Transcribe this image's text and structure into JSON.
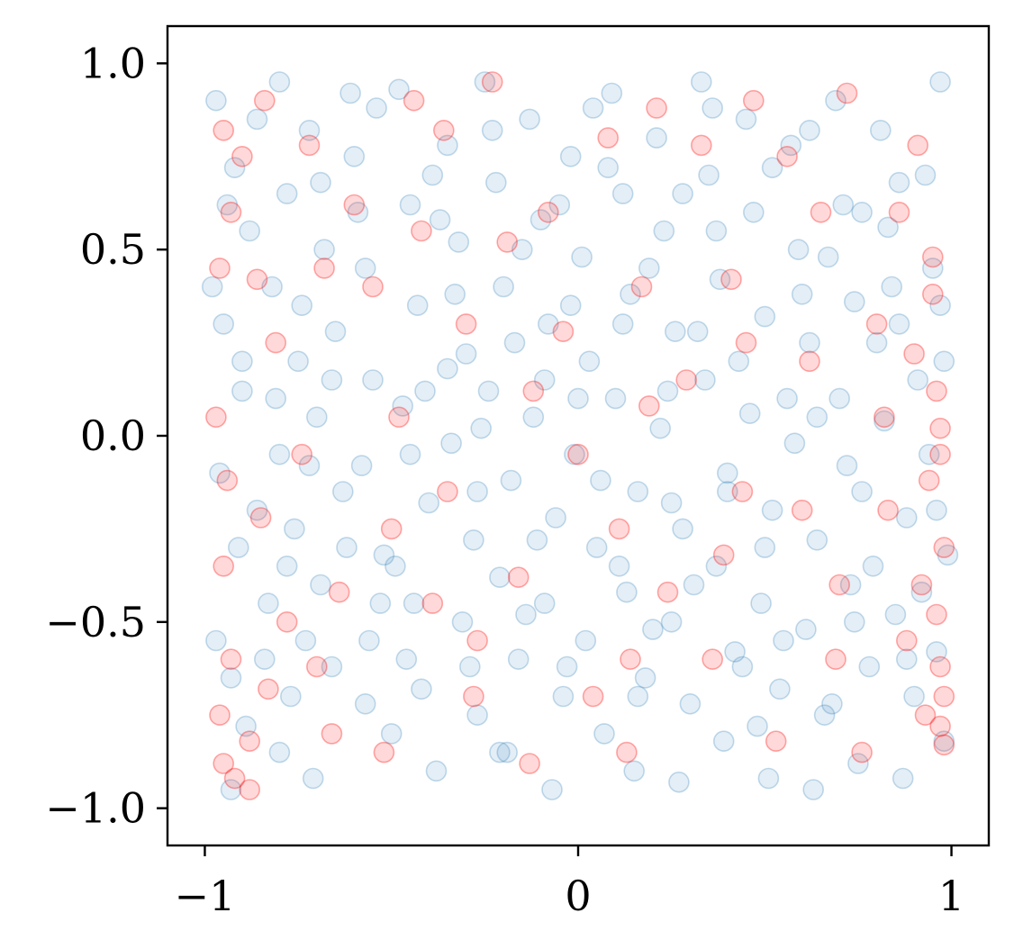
{
  "chart_data": {
    "type": "scatter",
    "title": "",
    "xlabel": "",
    "ylabel": "",
    "xlim": [
      -1.1,
      1.1
    ],
    "ylim": [
      -1.1,
      1.1
    ],
    "grid": false,
    "x_ticks": [
      {
        "value": -1,
        "label": "−1"
      },
      {
        "value": 0,
        "label": "0"
      },
      {
        "value": 1,
        "label": "1"
      }
    ],
    "y_ticks": [
      {
        "value": 1.0,
        "label": "1.0"
      },
      {
        "value": 0.5,
        "label": "0.5"
      },
      {
        "value": 0.0,
        "label": "0.0"
      },
      {
        "value": -0.5,
        "label": "−0.5"
      },
      {
        "value": -1.0,
        "label": "−1.0"
      }
    ],
    "series": [
      {
        "color": "#1f77b4",
        "opacity": 0.12,
        "points": [
          [
            -0.97,
            0.9
          ],
          [
            -0.92,
            0.72
          ],
          [
            -0.88,
            0.55
          ],
          [
            -0.95,
            0.3
          ],
          [
            -0.9,
            0.12
          ],
          [
            -0.96,
            -0.1
          ],
          [
            -0.91,
            -0.3
          ],
          [
            -0.97,
            -0.55
          ],
          [
            -0.89,
            -0.78
          ],
          [
            -0.93,
            -0.95
          ],
          [
            -0.8,
            0.95
          ],
          [
            -0.78,
            0.65
          ],
          [
            -0.82,
            0.4
          ],
          [
            -0.75,
            0.2
          ],
          [
            -0.8,
            -0.05
          ],
          [
            -0.76,
            -0.25
          ],
          [
            -0.83,
            -0.45
          ],
          [
            -0.77,
            -0.7
          ],
          [
            -0.8,
            -0.85
          ],
          [
            -0.72,
            0.82
          ],
          [
            -0.68,
            0.5
          ],
          [
            -0.65,
            0.28
          ],
          [
            -0.7,
            0.05
          ],
          [
            -0.63,
            -0.15
          ],
          [
            -0.69,
            -0.4
          ],
          [
            -0.66,
            -0.62
          ],
          [
            -0.71,
            -0.92
          ],
          [
            -0.6,
            0.75
          ],
          [
            -0.57,
            0.45
          ],
          [
            -0.55,
            0.15
          ],
          [
            -0.58,
            -0.08
          ],
          [
            -0.52,
            -0.32
          ],
          [
            -0.56,
            -0.55
          ],
          [
            -0.5,
            -0.8
          ],
          [
            -0.48,
            0.93
          ],
          [
            -0.45,
            0.62
          ],
          [
            -0.43,
            0.35
          ],
          [
            -0.47,
            0.08
          ],
          [
            -0.4,
            -0.18
          ],
          [
            -0.44,
            -0.45
          ],
          [
            -0.42,
            -0.68
          ],
          [
            -0.38,
            -0.9
          ],
          [
            -0.35,
            0.78
          ],
          [
            -0.32,
            0.52
          ],
          [
            -0.3,
            0.22
          ],
          [
            -0.34,
            -0.02
          ],
          [
            -0.28,
            -0.28
          ],
          [
            -0.31,
            -0.5
          ],
          [
            -0.27,
            -0.75
          ],
          [
            -0.25,
            0.95
          ],
          [
            -0.22,
            0.68
          ],
          [
            -0.2,
            0.4
          ],
          [
            -0.24,
            0.12
          ],
          [
            -0.18,
            -0.12
          ],
          [
            -0.21,
            -0.38
          ],
          [
            -0.16,
            -0.6
          ],
          [
            -0.19,
            -0.85
          ],
          [
            -0.13,
            0.85
          ],
          [
            -0.1,
            0.58
          ],
          [
            -0.08,
            0.3
          ],
          [
            -0.12,
            0.05
          ],
          [
            -0.06,
            -0.22
          ],
          [
            -0.09,
            -0.45
          ],
          [
            -0.04,
            -0.7
          ],
          [
            -0.07,
            -0.95
          ],
          [
            -0.02,
            0.75
          ],
          [
            0.01,
            0.48
          ],
          [
            0.03,
            0.2
          ],
          [
            -0.01,
            -0.05
          ],
          [
            0.05,
            -0.3
          ],
          [
            0.02,
            -0.55
          ],
          [
            0.07,
            -0.8
          ],
          [
            0.09,
            0.92
          ],
          [
            0.12,
            0.65
          ],
          [
            0.14,
            0.38
          ],
          [
            0.1,
            0.1
          ],
          [
            0.16,
            -0.15
          ],
          [
            0.13,
            -0.42
          ],
          [
            0.18,
            -0.65
          ],
          [
            0.15,
            -0.9
          ],
          [
            0.21,
            0.8
          ],
          [
            0.23,
            0.55
          ],
          [
            0.26,
            0.28
          ],
          [
            0.22,
            0.02
          ],
          [
            0.28,
            -0.25
          ],
          [
            0.25,
            -0.5
          ],
          [
            0.3,
            -0.72
          ],
          [
            0.27,
            -0.93
          ],
          [
            0.33,
            0.95
          ],
          [
            0.35,
            0.7
          ],
          [
            0.38,
            0.42
          ],
          [
            0.34,
            0.15
          ],
          [
            0.4,
            -0.1
          ],
          [
            0.37,
            -0.35
          ],
          [
            0.42,
            -0.58
          ],
          [
            0.39,
            -0.82
          ],
          [
            0.45,
            0.85
          ],
          [
            0.47,
            0.6
          ],
          [
            0.5,
            0.32
          ],
          [
            0.46,
            0.06
          ],
          [
            0.52,
            -0.2
          ],
          [
            0.49,
            -0.45
          ],
          [
            0.54,
            -0.68
          ],
          [
            0.51,
            -0.92
          ],
          [
            0.57,
            0.78
          ],
          [
            0.59,
            0.5
          ],
          [
            0.62,
            0.25
          ],
          [
            0.58,
            -0.02
          ],
          [
            0.64,
            -0.28
          ],
          [
            0.61,
            -0.52
          ],
          [
            0.66,
            -0.75
          ],
          [
            0.63,
            -0.95
          ],
          [
            0.69,
            0.9
          ],
          [
            0.71,
            0.62
          ],
          [
            0.74,
            0.36
          ],
          [
            0.7,
            0.1
          ],
          [
            0.76,
            -0.15
          ],
          [
            0.73,
            -0.4
          ],
          [
            0.78,
            -0.62
          ],
          [
            0.75,
            -0.88
          ],
          [
            0.81,
            0.82
          ],
          [
            0.83,
            0.56
          ],
          [
            0.86,
            0.3
          ],
          [
            0.82,
            0.04
          ],
          [
            0.88,
            -0.22
          ],
          [
            0.85,
            -0.48
          ],
          [
            0.9,
            -0.7
          ],
          [
            0.87,
            -0.92
          ],
          [
            0.93,
            0.7
          ],
          [
            0.95,
            0.45
          ],
          [
            0.98,
            0.2
          ],
          [
            0.94,
            -0.05
          ],
          [
            0.99,
            -0.32
          ],
          [
            0.96,
            -0.58
          ],
          [
            0.98,
            -0.82
          ],
          [
            0.97,
            0.95
          ],
          [
            -0.86,
            0.85
          ],
          [
            -0.74,
            0.35
          ],
          [
            -0.62,
            -0.3
          ],
          [
            -0.54,
            0.88
          ],
          [
            -0.41,
            0.12
          ],
          [
            -0.29,
            -0.62
          ],
          [
            -0.17,
            0.25
          ],
          [
            -0.05,
            0.62
          ],
          [
            0.06,
            -0.12
          ],
          [
            0.19,
            0.45
          ],
          [
            0.31,
            -0.4
          ],
          [
            0.43,
            0.2
          ],
          [
            0.55,
            -0.55
          ],
          [
            0.67,
            0.48
          ],
          [
            0.79,
            -0.35
          ],
          [
            0.91,
            0.15
          ],
          [
            -0.93,
            -0.65
          ],
          [
            -0.81,
            0.1
          ],
          [
            -0.69,
            0.68
          ],
          [
            -0.57,
            -0.72
          ],
          [
            -0.45,
            -0.05
          ],
          [
            -0.33,
            0.38
          ],
          [
            -0.21,
            -0.85
          ],
          [
            -0.09,
            0.15
          ],
          [
            0.04,
            0.88
          ],
          [
            0.16,
            -0.7
          ],
          [
            0.28,
            0.65
          ],
          [
            0.4,
            -0.15
          ],
          [
            0.52,
            0.72
          ],
          [
            0.64,
            0.05
          ],
          [
            0.76,
            0.6
          ],
          [
            0.88,
            -0.6
          ],
          [
            -0.98,
            0.4
          ],
          [
            -0.86,
            -0.2
          ],
          [
            -0.73,
            -0.55
          ],
          [
            -0.61,
            0.92
          ],
          [
            -0.49,
            -0.35
          ],
          [
            -0.37,
            0.58
          ],
          [
            -0.26,
            0.02
          ],
          [
            -0.14,
            -0.48
          ],
          [
            -0.02,
            0.35
          ],
          [
            0.11,
            -0.35
          ],
          [
            0.24,
            0.12
          ],
          [
            0.36,
            0.88
          ],
          [
            0.48,
            -0.78
          ],
          [
            0.6,
            0.38
          ],
          [
            0.72,
            -0.08
          ],
          [
            0.84,
            0.4
          ],
          [
            0.96,
            -0.2
          ],
          [
            -0.94,
            0.62
          ],
          [
            -0.84,
            -0.6
          ],
          [
            -0.72,
            -0.08
          ],
          [
            -0.59,
            0.6
          ],
          [
            -0.46,
            -0.6
          ],
          [
            -0.35,
            0.18
          ],
          [
            -0.23,
            0.82
          ],
          [
            -0.11,
            -0.28
          ],
          [
            0.0,
            0.1
          ],
          [
            0.12,
            0.3
          ],
          [
            0.25,
            -0.18
          ],
          [
            0.37,
            0.55
          ],
          [
            0.5,
            -0.3
          ],
          [
            0.62,
            0.82
          ],
          [
            0.74,
            -0.5
          ],
          [
            0.86,
            0.68
          ],
          [
            0.97,
            0.35
          ],
          [
            -0.9,
            0.2
          ],
          [
            -0.78,
            -0.35
          ],
          [
            -0.66,
            0.15
          ],
          [
            -0.53,
            -0.45
          ],
          [
            -0.39,
            0.7
          ],
          [
            -0.27,
            -0.15
          ],
          [
            -0.15,
            0.5
          ],
          [
            -0.03,
            -0.62
          ],
          [
            0.08,
            0.72
          ],
          [
            0.2,
            -0.52
          ],
          [
            0.32,
            0.28
          ],
          [
            0.44,
            -0.62
          ],
          [
            0.56,
            0.1
          ],
          [
            0.68,
            -0.72
          ],
          [
            0.8,
            0.25
          ],
          [
            0.92,
            -0.42
          ]
        ]
      },
      {
        "color": "#ff0000",
        "opacity": 0.15,
        "points": [
          [
            -0.95,
            0.82
          ],
          [
            -0.93,
            0.6
          ],
          [
            -0.96,
            0.45
          ],
          [
            -0.97,
            0.05
          ],
          [
            -0.94,
            -0.12
          ],
          [
            -0.95,
            -0.35
          ],
          [
            -0.93,
            -0.6
          ],
          [
            -0.96,
            -0.75
          ],
          [
            -0.95,
            -0.88
          ],
          [
            -0.92,
            -0.92
          ],
          [
            -0.84,
            0.9
          ],
          [
            -0.86,
            0.42
          ],
          [
            -0.81,
            0.25
          ],
          [
            -0.85,
            -0.22
          ],
          [
            -0.83,
            -0.68
          ],
          [
            -0.88,
            -0.95
          ],
          [
            -0.72,
            0.78
          ],
          [
            -0.68,
            0.45
          ],
          [
            -0.74,
            -0.05
          ],
          [
            -0.7,
            -0.62
          ],
          [
            -0.66,
            -0.8
          ],
          [
            -0.55,
            0.4
          ],
          [
            -0.5,
            -0.25
          ],
          [
            -0.52,
            -0.85
          ],
          [
            -0.44,
            0.9
          ],
          [
            -0.42,
            0.55
          ],
          [
            -0.39,
            -0.45
          ],
          [
            -0.36,
            0.82
          ],
          [
            -0.3,
            0.3
          ],
          [
            -0.28,
            -0.7
          ],
          [
            -0.23,
            0.95
          ],
          [
            -0.19,
            0.52
          ],
          [
            -0.16,
            -0.38
          ],
          [
            -0.13,
            -0.88
          ],
          [
            -0.08,
            0.6
          ],
          [
            -0.04,
            0.28
          ],
          [
            0.0,
            -0.05
          ],
          [
            0.04,
            -0.7
          ],
          [
            0.08,
            0.8
          ],
          [
            0.11,
            -0.25
          ],
          [
            0.13,
            -0.85
          ],
          [
            0.17,
            0.4
          ],
          [
            0.21,
            0.88
          ],
          [
            0.24,
            -0.42
          ],
          [
            0.29,
            0.15
          ],
          [
            0.33,
            0.78
          ],
          [
            0.36,
            -0.6
          ],
          [
            0.41,
            0.42
          ],
          [
            0.44,
            -0.15
          ],
          [
            0.47,
            0.9
          ],
          [
            0.53,
            -0.82
          ],
          [
            0.56,
            0.75
          ],
          [
            0.6,
            -0.2
          ],
          [
            0.65,
            0.6
          ],
          [
            0.69,
            -0.6
          ],
          [
            0.72,
            0.92
          ],
          [
            0.76,
            -0.85
          ],
          [
            0.8,
            0.3
          ],
          [
            0.83,
            -0.2
          ],
          [
            0.86,
            0.6
          ],
          [
            0.88,
            -0.55
          ],
          [
            0.91,
            0.78
          ],
          [
            0.93,
            -0.75
          ],
          [
            0.95,
            0.48
          ],
          [
            0.96,
            0.12
          ],
          [
            0.97,
            -0.05
          ],
          [
            0.98,
            -0.3
          ],
          [
            0.96,
            -0.48
          ],
          [
            0.97,
            -0.62
          ],
          [
            0.98,
            -0.7
          ],
          [
            0.97,
            -0.78
          ],
          [
            0.98,
            -0.83
          ],
          [
            0.95,
            0.38
          ],
          [
            0.97,
            0.02
          ],
          [
            0.94,
            -0.12
          ],
          [
            -0.6,
            0.62
          ],
          [
            -0.48,
            0.05
          ],
          [
            -0.35,
            -0.15
          ],
          [
            -0.12,
            0.12
          ],
          [
            0.19,
            0.08
          ],
          [
            0.39,
            -0.32
          ],
          [
            0.62,
            0.2
          ],
          [
            0.82,
            0.05
          ],
          [
            -0.78,
            -0.5
          ],
          [
            -0.64,
            -0.42
          ],
          [
            -0.27,
            -0.55
          ],
          [
            0.14,
            -0.6
          ],
          [
            0.45,
            0.25
          ],
          [
            0.7,
            -0.4
          ],
          [
            -0.9,
            0.75
          ],
          [
            -0.88,
            -0.82
          ],
          [
            0.9,
            0.22
          ],
          [
            0.92,
            -0.4
          ]
        ]
      }
    ]
  }
}
